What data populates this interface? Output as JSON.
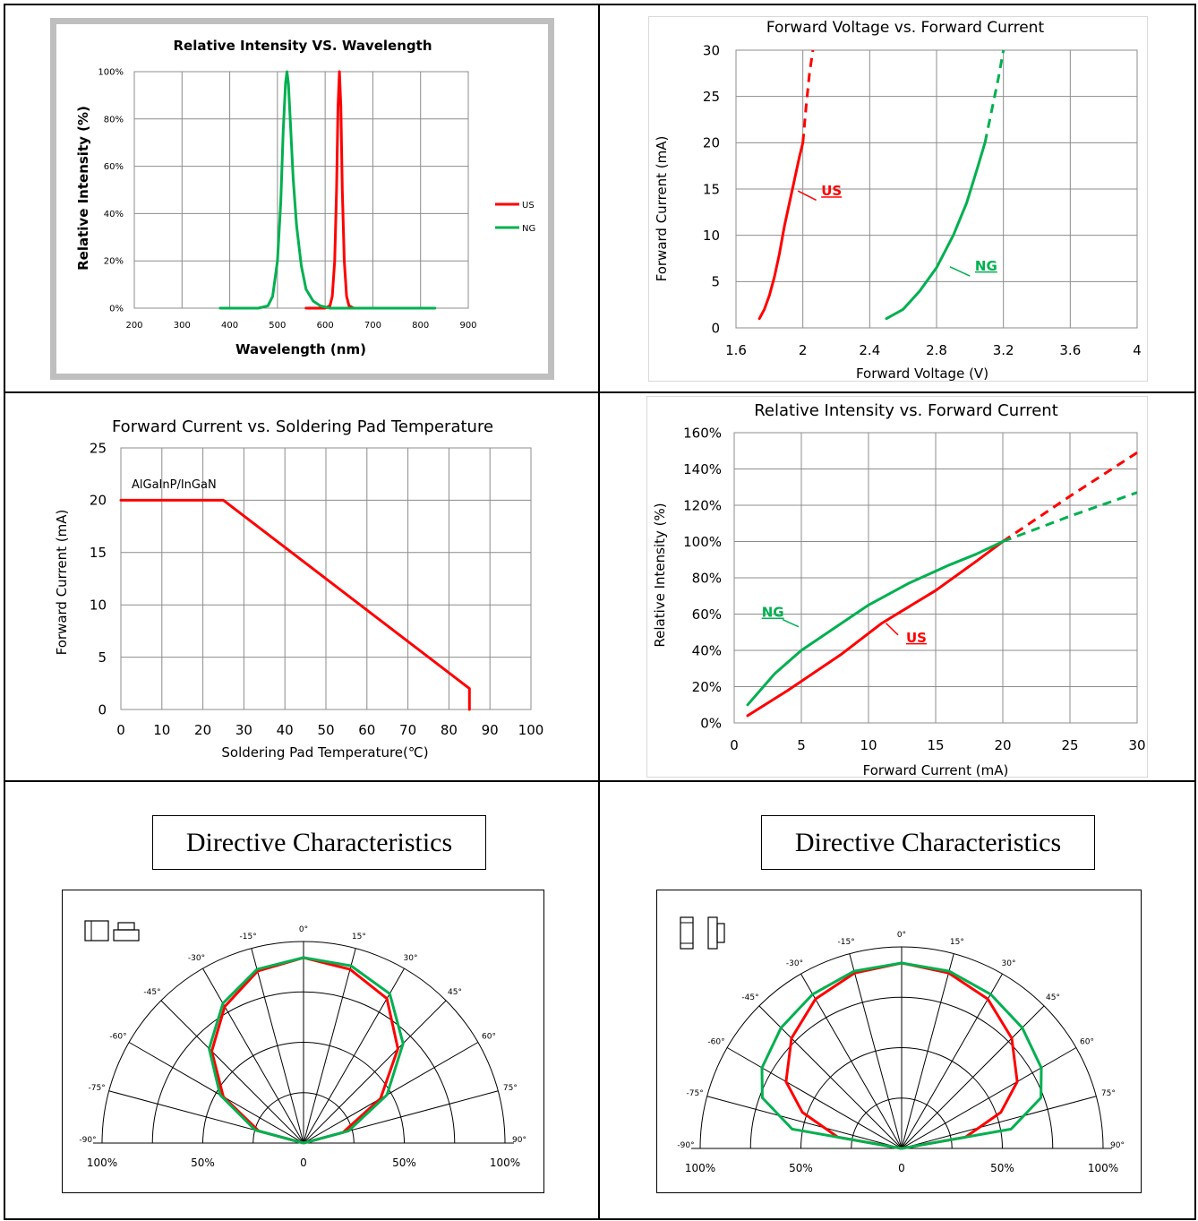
{
  "colors": {
    "us": "#ff0000",
    "ng": "#00b050",
    "grid": "#7f7f7f",
    "frame": "#bfbfbf"
  },
  "chart_data": [
    {
      "id": "spectrum",
      "type": "line",
      "title": "Relative Intensity VS. Wavelength",
      "xlabel": "Wavelength (nm)",
      "ylabel": "Relative Intensity (%)",
      "xlim": [
        200,
        900
      ],
      "ylim": [
        0,
        100
      ],
      "xticks": [
        "200",
        "300",
        "400",
        "500",
        "600",
        "700",
        "800",
        "900"
      ],
      "yticks": [
        "0%",
        "20%",
        "40%",
        "60%",
        "80%",
        "100%"
      ],
      "legend": "right",
      "series": [
        {
          "name": "US",
          "color": "#ff0000",
          "x": [
            560,
            600,
            610,
            615,
            620,
            624,
            627,
            630,
            633,
            636,
            640,
            645,
            650,
            660,
            700
          ],
          "y": [
            0,
            0,
            1,
            5,
            20,
            50,
            85,
            100,
            85,
            50,
            20,
            5,
            1,
            0,
            0
          ]
        },
        {
          "name": "NG",
          "color": "#00b050",
          "x": [
            380,
            460,
            480,
            490,
            500,
            507,
            512,
            517,
            520,
            523,
            528,
            533,
            540,
            550,
            560,
            575,
            590,
            610,
            660,
            830
          ],
          "y": [
            0,
            0,
            1,
            5,
            20,
            45,
            75,
            95,
            100,
            95,
            75,
            55,
            35,
            18,
            8,
            3,
            1,
            0,
            0,
            0
          ]
        }
      ]
    },
    {
      "id": "iv",
      "type": "line",
      "title": "Forward Voltage vs. Forward Current",
      "xlabel": "Forward Voltage (V)",
      "ylabel": "Forward Current (mA)",
      "xlim": [
        1.6,
        4
      ],
      "ylim": [
        0,
        30
      ],
      "xticks": [
        "1.6",
        "2",
        "2.4",
        "2.8",
        "3.2",
        "3.6",
        "4"
      ],
      "yticks": [
        "0",
        "5",
        "10",
        "15",
        "20",
        "25",
        "30"
      ],
      "series": [
        {
          "name": "US",
          "color": "#ff0000",
          "x": [
            1.74,
            1.77,
            1.8,
            1.83,
            1.86,
            1.89,
            1.92,
            1.95,
            1.98,
            2.0
          ],
          "y": [
            1,
            2,
            3.5,
            5.5,
            8,
            11,
            13.5,
            16,
            18.5,
            20
          ],
          "x_dashed": [
            2.0,
            2.02,
            2.04,
            2.06
          ],
          "y_dashed": [
            20,
            24,
            27.5,
            30
          ]
        },
        {
          "name": "NG",
          "color": "#00b050",
          "x": [
            2.5,
            2.6,
            2.7,
            2.8,
            2.9,
            2.98,
            3.04,
            3.09
          ],
          "y": [
            1,
            2,
            4,
            6.5,
            10,
            13.5,
            17,
            20
          ],
          "x_dashed": [
            3.09,
            3.13,
            3.17,
            3.2
          ],
          "y_dashed": [
            20,
            23.5,
            27,
            30
          ]
        }
      ],
      "annotations": [
        "US",
        "NG"
      ]
    },
    {
      "id": "derating",
      "type": "line",
      "title": "Forward Current  vs. Soldering  Pad Temperature",
      "xlabel": "Soldering Pad Temperature(℃)",
      "ylabel": "Forward Current (mA)",
      "xlim": [
        0,
        100
      ],
      "ylim": [
        0,
        25
      ],
      "xticks": [
        "0",
        "10",
        "20",
        "30",
        "40",
        "50",
        "60",
        "70",
        "80",
        "90",
        "100"
      ],
      "yticks": [
        "0",
        "5",
        "10",
        "15",
        "20",
        "25"
      ],
      "annotation": "AlGaInP/InGaN",
      "series": [
        {
          "name": "AlGaInP/InGaN",
          "color": "#ff0000",
          "x": [
            0,
            25,
            85,
            85
          ],
          "y": [
            20,
            20,
            2,
            0
          ]
        }
      ]
    },
    {
      "id": "intensity_current",
      "type": "line",
      "title": "Relative Intensity vs. Forward Current",
      "xlabel": "Forward Current (mA)",
      "ylabel": "Relative Intensity (%)",
      "xlim": [
        0,
        30
      ],
      "ylim": [
        0,
        160
      ],
      "xticks": [
        "0",
        "5",
        "10",
        "15",
        "20",
        "25",
        "30"
      ],
      "yticks": [
        "0%",
        "20%",
        "40%",
        "60%",
        "80%",
        "100%",
        "120%",
        "140%",
        "160%"
      ],
      "series": [
        {
          "name": "US",
          "color": "#ff0000",
          "x": [
            1,
            4,
            8,
            11,
            15,
            18,
            20
          ],
          "y": [
            4,
            18,
            38,
            55,
            73,
            89,
            100
          ],
          "x_dashed": [
            20,
            25,
            30
          ],
          "y_dashed": [
            100,
            125,
            149
          ]
        },
        {
          "name": "NG",
          "color": "#00b050",
          "x": [
            1,
            3,
            5,
            8,
            10,
            13,
            16,
            18,
            20
          ],
          "y": [
            10,
            27,
            40,
            55,
            65,
            77,
            87,
            93,
            100
          ],
          "x_dashed": [
            20,
            25,
            30
          ],
          "y_dashed": [
            100,
            114,
            127
          ]
        }
      ],
      "annotations": [
        "NG",
        "US"
      ]
    },
    {
      "id": "polar_left",
      "type": "polar",
      "title": "Directive Characteristics",
      "angles": [
        "0°",
        "15°",
        "30°",
        "45°",
        "60°",
        "75°",
        "90°",
        "-15°",
        "-30°",
        "-45°",
        "-60°",
        "-75°",
        "-90°"
      ],
      "radial_labels": [
        "100%",
        "50%",
        "0",
        "50%",
        "100%"
      ],
      "series": [
        {
          "name": "US",
          "color": "#ff0000",
          "deg": [
            -90,
            -75,
            -60,
            -45,
            -30,
            -15,
            0,
            15,
            30,
            45,
            60,
            75,
            90
          ],
          "r": [
            0,
            0.25,
            0.5,
            0.7,
            0.85,
            0.96,
            1.0,
            0.97,
            0.9,
            0.72,
            0.48,
            0.22,
            0
          ]
        },
        {
          "name": "NG",
          "color": "#00b050",
          "deg": [
            -90,
            -75,
            -60,
            -45,
            -30,
            -15,
            0,
            15,
            30,
            45,
            60,
            75,
            90
          ],
          "r": [
            0,
            0.27,
            0.52,
            0.72,
            0.87,
            0.97,
            1.0,
            0.99,
            0.93,
            0.76,
            0.52,
            0.25,
            0
          ]
        }
      ]
    },
    {
      "id": "polar_right",
      "type": "polar",
      "title": "Directive Characteristics",
      "angles": [
        "0°",
        "15°",
        "30°",
        "45°",
        "60°",
        "75°",
        "90°",
        "-15°",
        "-30°",
        "-45°",
        "-60°",
        "-75°",
        "-90°"
      ],
      "radial_labels": [
        "100%",
        "50%",
        "0",
        "50%",
        "100%"
      ],
      "series": [
        {
          "name": "US",
          "color": "#ff0000",
          "deg": [
            -90,
            -80,
            -70,
            -60,
            -45,
            -30,
            -15,
            0,
            15,
            30,
            45,
            60,
            70,
            80,
            90
          ],
          "r": [
            0,
            0.35,
            0.57,
            0.72,
            0.84,
            0.93,
            0.98,
            1.0,
            0.98,
            0.93,
            0.84,
            0.72,
            0.57,
            0.35,
            0
          ]
        },
        {
          "name": "NG",
          "color": "#00b050",
          "deg": [
            -90,
            -80,
            -70,
            -60,
            -45,
            -30,
            -15,
            0,
            15,
            30,
            45,
            60,
            70,
            80,
            90
          ],
          "r": [
            0,
            0.6,
            0.8,
            0.87,
            0.92,
            0.96,
            0.99,
            1.0,
            0.99,
            0.96,
            0.92,
            0.87,
            0.8,
            0.6,
            0
          ]
        }
      ]
    }
  ]
}
